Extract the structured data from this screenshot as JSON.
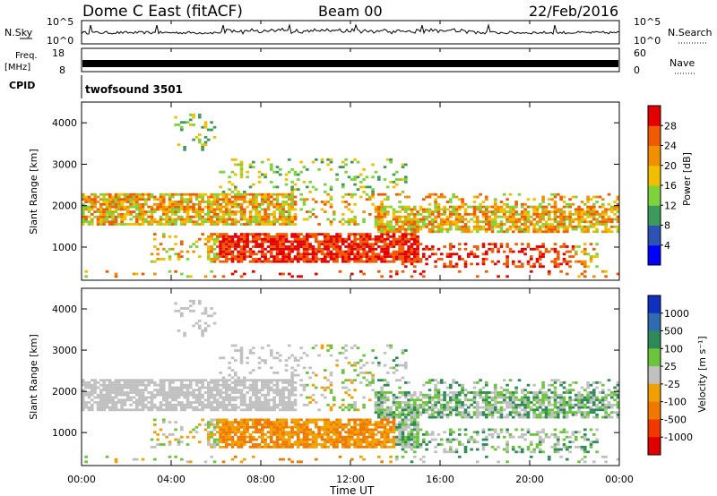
{
  "header": {
    "station": "Dome C East (fitACF)",
    "beam": "Beam 00",
    "date": "22/Feb/2016"
  },
  "top_panels": {
    "nsky": {
      "label": "N.Sky",
      "y_max": "10^5",
      "y_min": "10^0",
      "right_label": "N.Search",
      "right_max": "10^5",
      "right_min": "10^0"
    },
    "freq": {
      "label_line1": "Freq.",
      "label_line2": "[MHz]",
      "y_max": "18",
      "y_min": "8",
      "right_label": "Nave",
      "right_max": "60",
      "right_min": "0"
    },
    "cpid": {
      "label": "CPID",
      "value": "twofsound 3501"
    }
  },
  "colors": {
    "power_scale": [
      "#0000ff",
      "#2c52b5",
      "#3c9a5c",
      "#7ed23c",
      "#f0c000",
      "#f09000",
      "#f05a00",
      "#e40000"
    ],
    "velocity_scale": [
      "#1030c0",
      "#2e6bb0",
      "#2f8a5a",
      "#6cc43c",
      "#c0c0c0",
      "#f0a000",
      "#f07800",
      "#f03800",
      "#e00000"
    ]
  },
  "chart_data": [
    {
      "type": "heatmap",
      "name": "power-panel",
      "ylabel": "Slant Range [km]",
      "ylim": [
        200,
        4500
      ],
      "y_ticks": [
        "1000",
        "2000",
        "3000",
        "4000"
      ],
      "xlim_hours": [
        0,
        24
      ],
      "colorbar": {
        "label": "Power [dB]",
        "ticks": [
          "4",
          "8",
          "12",
          "16",
          "20",
          "24",
          "28"
        ],
        "range": [
          0,
          32
        ]
      }
    },
    {
      "type": "heatmap",
      "name": "velocity-panel",
      "ylabel": "Slant Range [km]",
      "ylim": [
        200,
        4500
      ],
      "y_ticks": [
        "1000",
        "2000",
        "3000",
        "4000"
      ],
      "xlim_hours": [
        0,
        24
      ],
      "colorbar": {
        "label": "Velocity [m s⁻¹]",
        "ticks": [
          "1000",
          "500",
          "100",
          "25",
          "-25",
          "-100",
          "-500",
          "-1000"
        ]
      }
    }
  ],
  "x_axis": {
    "label": "Time UT",
    "ticks": [
      "00:00",
      "04:00",
      "08:00",
      "12:00",
      "16:00",
      "20:00",
      "00:00"
    ]
  }
}
